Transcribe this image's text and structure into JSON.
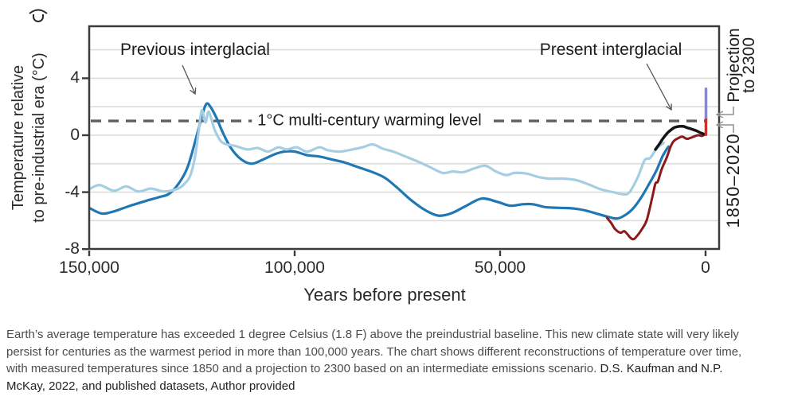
{
  "figure": {
    "y_axis_label_line1": "Temperature relative",
    "y_axis_label_line2": "to pre-industrial era (°C)",
    "x_axis_label": "Years before present",
    "annotations": {
      "previous_interglacial": "Previous interglacial",
      "present_interglacial": "Present interglacial",
      "warming_level": "1°C multi-century warming level",
      "projection_line1": "Projection",
      "projection_line2": "to 2300",
      "period_1850_2020": "1850–2020"
    }
  },
  "caption": {
    "body": "Earth’s average temperature has exceeded 1 degree Celsius (1.8 F) above the preindustrial baseline. This new climate state will very likely persist for centuries as the warmest period in more than 100,000 years. The chart shows different reconstructions of temperature over time, with measured temperatures since 1850 and a projection to 2300 based on an intermediate emissions scenario. ",
    "citation": "D.S. Kaufman and N.P. McKay, 2022, and published datasets, Author provided"
  },
  "colors": {
    "dark_blue": "#1f78b4",
    "light_blue": "#a6cee3",
    "dark_red": "#8c1a1a",
    "black_line": "#141414",
    "observed_red": "#e8251d",
    "projection_purple": "#8287e2",
    "dashed_reference": "#5f5f5f",
    "grid": "#dcdcdc",
    "axis": "#3b3b3b",
    "annotation_arrow": "#555555",
    "callout_gray": "#8f8f8f"
  },
  "chart_data": {
    "type": "line",
    "title": "",
    "xlabel": "Years before present",
    "ylabel": "Temperature relative to pre-industrial era (°C)",
    "x_axis": {
      "range_years_bp": [
        150000,
        -3300
      ],
      "direction": "reversed",
      "ticks": [
        {
          "value": 150000,
          "label": "150,000"
        },
        {
          "value": 100000,
          "label": "100,000"
        },
        {
          "value": 50000,
          "label": "50,000"
        },
        {
          "value": 0,
          "label": "0"
        }
      ]
    },
    "y_axis": {
      "range_degC": [
        -8,
        7.6
      ],
      "ticks": [
        {
          "value": 4,
          "label": "4"
        },
        {
          "value": 0,
          "label": "0"
        },
        {
          "value": -4,
          "label": "-4"
        },
        {
          "value": -8,
          "label": "-8"
        }
      ]
    },
    "gridlines_y": [
      6,
      4,
      2,
      0,
      -2,
      -4,
      -6
    ],
    "grid": true,
    "legend": "none",
    "reference_line": {
      "y": 1,
      "style": "dashed",
      "label": "1°C multi-century warming level"
    },
    "series": [
      {
        "name": "glacial-cycle reconstruction (dark blue)",
        "color": "#1f78b4",
        "width": 3.2,
        "points": [
          [
            150000,
            -5.1
          ],
          [
            147000,
            -5.5
          ],
          [
            144000,
            -5.35
          ],
          [
            140000,
            -4.95
          ],
          [
            136000,
            -4.6
          ],
          [
            133000,
            -4.35
          ],
          [
            130500,
            -4.1
          ],
          [
            128000,
            -3.3
          ],
          [
            126000,
            -2.2
          ],
          [
            124000,
            -0.2
          ],
          [
            122500,
            1.4
          ],
          [
            121500,
            2.2
          ],
          [
            120500,
            2.0
          ],
          [
            119000,
            1.2
          ],
          [
            117500,
            0.2
          ],
          [
            115500,
            -0.9
          ],
          [
            113000,
            -1.7
          ],
          [
            110500,
            -2.0
          ],
          [
            108000,
            -1.75
          ],
          [
            105000,
            -1.35
          ],
          [
            102500,
            -1.15
          ],
          [
            100000,
            -1.15
          ],
          [
            97000,
            -1.4
          ],
          [
            94000,
            -1.5
          ],
          [
            91000,
            -1.7
          ],
          [
            88000,
            -1.9
          ],
          [
            85000,
            -2.2
          ],
          [
            81000,
            -2.6
          ],
          [
            78000,
            -3.0
          ],
          [
            75000,
            -3.7
          ],
          [
            71500,
            -4.6
          ],
          [
            68000,
            -5.3
          ],
          [
            65000,
            -5.65
          ],
          [
            62000,
            -5.5
          ],
          [
            58500,
            -5.0
          ],
          [
            54500,
            -4.45
          ],
          [
            50500,
            -4.7
          ],
          [
            47500,
            -4.95
          ],
          [
            44500,
            -4.85
          ],
          [
            42000,
            -4.85
          ],
          [
            39000,
            -5.05
          ],
          [
            35500,
            -5.1
          ],
          [
            32000,
            -5.15
          ],
          [
            29000,
            -5.3
          ],
          [
            26000,
            -5.55
          ],
          [
            23500,
            -5.75
          ],
          [
            21500,
            -5.85
          ],
          [
            19500,
            -5.6
          ],
          [
            17500,
            -5.1
          ],
          [
            15500,
            -4.3
          ],
          [
            13500,
            -3.3
          ],
          [
            12000,
            -2.5
          ],
          [
            10500,
            -1.5
          ],
          [
            9500,
            -1.0
          ],
          [
            9000,
            -0.8
          ]
        ]
      },
      {
        "name": "alternative reconstruction (light blue)",
        "color": "#a6cee3",
        "width": 3.2,
        "points": [
          [
            150000,
            -3.8
          ],
          [
            147500,
            -3.5
          ],
          [
            144000,
            -3.9
          ],
          [
            141000,
            -3.6
          ],
          [
            138000,
            -3.95
          ],
          [
            135000,
            -3.75
          ],
          [
            132000,
            -3.95
          ],
          [
            129500,
            -3.85
          ],
          [
            127500,
            -3.6
          ],
          [
            125500,
            -2.9
          ],
          [
            124300,
            -1.6
          ],
          [
            123400,
            0.2
          ],
          [
            122600,
            1.75
          ],
          [
            121700,
            0.9
          ],
          [
            120900,
            1.65
          ],
          [
            119500,
            0.4
          ],
          [
            118000,
            -0.4
          ],
          [
            116500,
            -0.65
          ],
          [
            114500,
            -0.75
          ],
          [
            111500,
            -1.0
          ],
          [
            109000,
            -0.9
          ],
          [
            106500,
            -1.15
          ],
          [
            104000,
            -0.85
          ],
          [
            102000,
            -1.0
          ],
          [
            99500,
            -0.85
          ],
          [
            97000,
            -1.15
          ],
          [
            94000,
            -0.85
          ],
          [
            92000,
            -1.05
          ],
          [
            89000,
            -1.15
          ],
          [
            86000,
            -1.0
          ],
          [
            83500,
            -0.85
          ],
          [
            81000,
            -0.65
          ],
          [
            78500,
            -0.95
          ],
          [
            76000,
            -1.15
          ],
          [
            73000,
            -1.5
          ],
          [
            70000,
            -1.85
          ],
          [
            67000,
            -2.25
          ],
          [
            64000,
            -2.65
          ],
          [
            61500,
            -2.55
          ],
          [
            59000,
            -2.6
          ],
          [
            56000,
            -2.3
          ],
          [
            53500,
            -2.15
          ],
          [
            51000,
            -2.55
          ],
          [
            48500,
            -2.8
          ],
          [
            46500,
            -2.65
          ],
          [
            43500,
            -2.7
          ],
          [
            40500,
            -2.95
          ],
          [
            38000,
            -3.05
          ],
          [
            34500,
            -3.05
          ],
          [
            31500,
            -3.15
          ],
          [
            28500,
            -3.45
          ],
          [
            25500,
            -3.8
          ],
          [
            22500,
            -4.0
          ],
          [
            20000,
            -4.15
          ],
          [
            18500,
            -4.0
          ],
          [
            16500,
            -2.95
          ],
          [
            14800,
            -1.75
          ],
          [
            13500,
            -1.6
          ],
          [
            11800,
            -0.9
          ],
          [
            10200,
            -0.55
          ]
        ]
      },
      {
        "name": "deglacial reconstruction (dark red)",
        "color": "#8c1a1a",
        "width": 3,
        "points": [
          [
            24000,
            -5.8
          ],
          [
            23000,
            -6.15
          ],
          [
            22000,
            -6.6
          ],
          [
            20700,
            -6.85
          ],
          [
            19700,
            -6.75
          ],
          [
            18300,
            -7.2
          ],
          [
            17500,
            -7.3
          ],
          [
            16600,
            -7.05
          ],
          [
            15600,
            -6.65
          ],
          [
            14300,
            -5.95
          ],
          [
            13000,
            -4.4
          ],
          [
            12200,
            -3.4
          ],
          [
            11600,
            -3.25
          ],
          [
            10700,
            -2.4
          ],
          [
            9500,
            -1.6
          ],
          [
            8500,
            -0.8
          ],
          [
            7700,
            -0.4
          ],
          [
            6600,
            -0.2
          ],
          [
            5700,
            -0.1
          ],
          [
            4600,
            -0.25
          ],
          [
            3800,
            -0.2
          ],
          [
            2900,
            -0.1
          ],
          [
            1800,
            0.0
          ],
          [
            900,
            -0.05
          ],
          [
            200,
            0.05
          ]
        ]
      },
      {
        "name": "Holocene reconstruction (black)",
        "color": "#141414",
        "width": 3.5,
        "points": [
          [
            12200,
            -1.0
          ],
          [
            11200,
            -0.6
          ],
          [
            10300,
            -0.2
          ],
          [
            9300,
            0.15
          ],
          [
            8300,
            0.4
          ],
          [
            7500,
            0.55
          ],
          [
            6400,
            0.62
          ],
          [
            5400,
            0.62
          ],
          [
            4400,
            0.52
          ],
          [
            3300,
            0.42
          ],
          [
            2300,
            0.32
          ],
          [
            1300,
            0.18
          ],
          [
            400,
            0.08
          ]
        ]
      },
      {
        "name": "observed warming 1850–2020 (red vertical)",
        "type": "vertical",
        "color": "#e8251d",
        "width": 3.5,
        "x": -100,
        "y_from": 0.05,
        "y_to": 1.25
      },
      {
        "name": "projection to 2300 (purple vertical)",
        "type": "vertical",
        "color": "#8287e2",
        "width": 3.5,
        "x": -100,
        "y_from": 1.25,
        "y_to": 3.25
      }
    ]
  }
}
